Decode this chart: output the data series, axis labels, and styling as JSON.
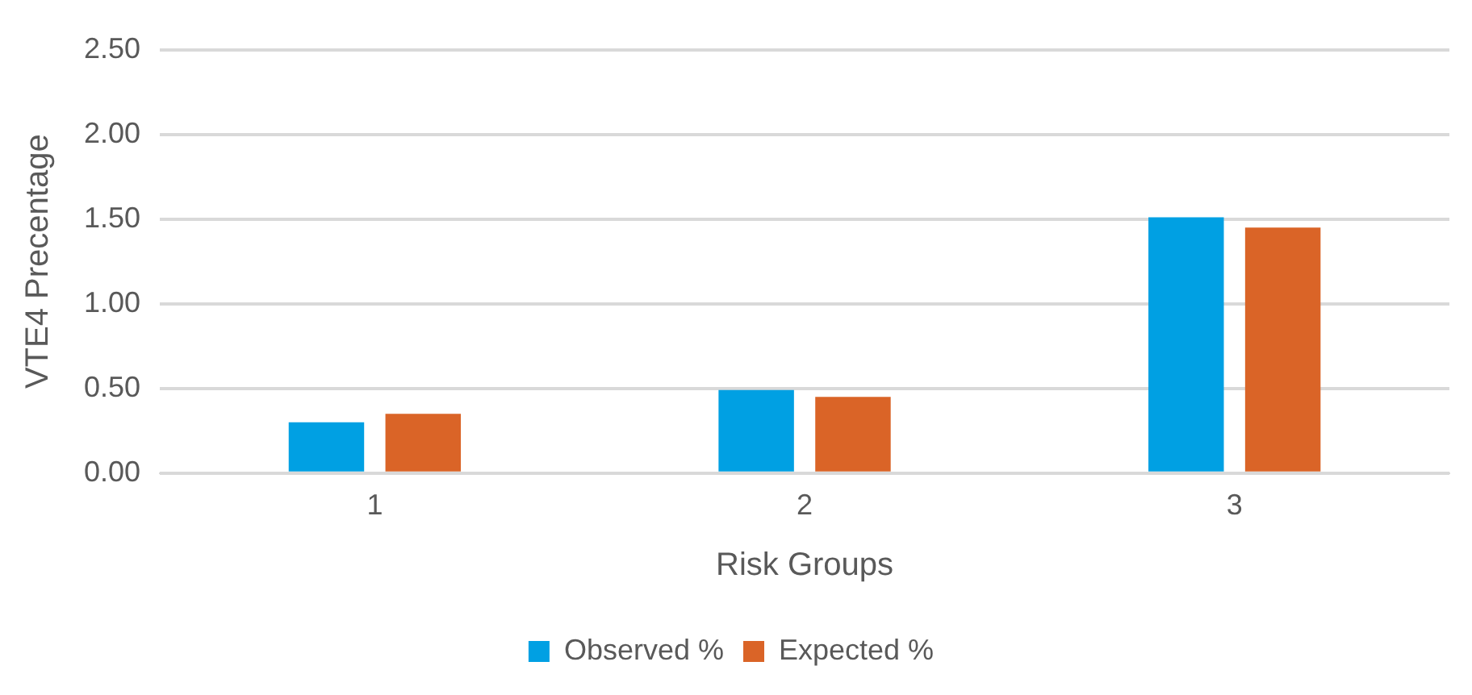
{
  "chart_data": {
    "type": "bar",
    "xlabel": "Risk Groups",
    "ylabel": "VTE4 Precentage",
    "categories": [
      "1",
      "2",
      "3"
    ],
    "series": [
      {
        "name": "Observed %",
        "color": "#00a0e3",
        "values": [
          0.3,
          0.49,
          1.51
        ]
      },
      {
        "name": "Expected %",
        "color": "#da6427",
        "values": [
          0.35,
          0.45,
          1.45
        ]
      }
    ],
    "ylim": [
      0,
      2.5
    ],
    "yticks": [
      {
        "value": 0,
        "label": "0.00"
      },
      {
        "value": 0.5,
        "label": "0.50"
      },
      {
        "value": 1,
        "label": "1.00"
      },
      {
        "value": 1.5,
        "label": "1.50"
      },
      {
        "value": 2,
        "label": "2.00"
      },
      {
        "value": 2.5,
        "label": "2.50"
      }
    ],
    "grid": "y",
    "legend": "bottom"
  }
}
